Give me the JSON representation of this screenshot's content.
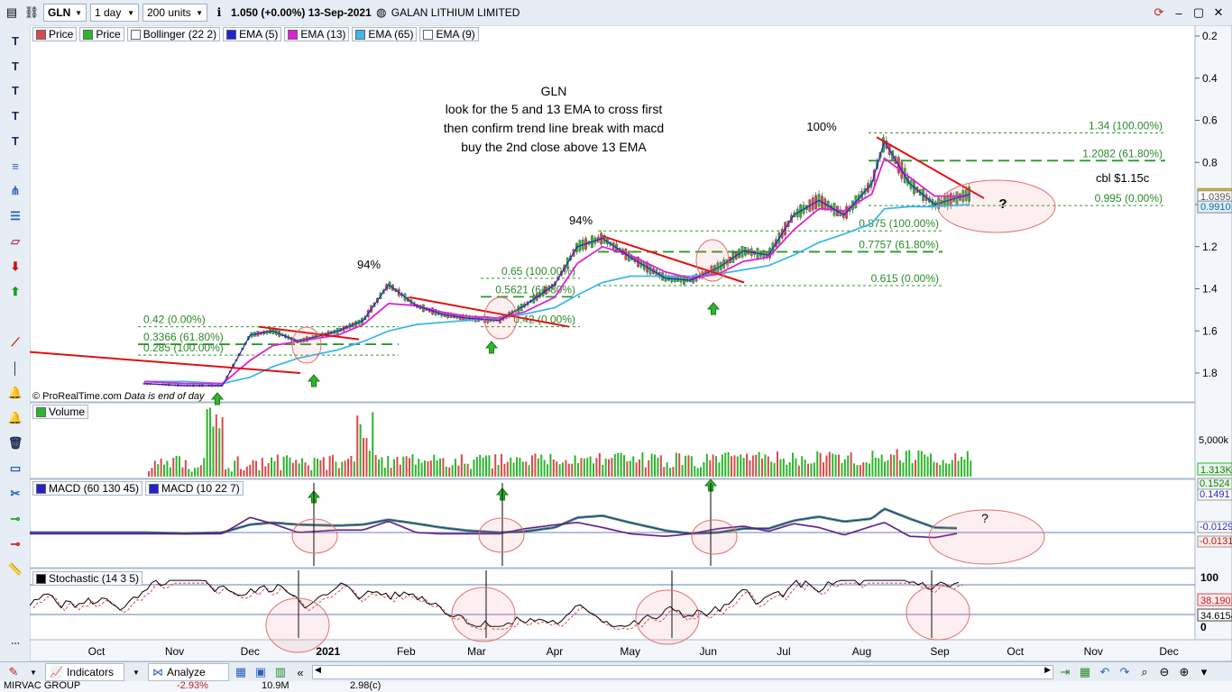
{
  "toolbar": {
    "ticker": "GLN",
    "interval": "1 day",
    "units": "200 units",
    "quote": "1.050 (+0.00%) 13-Sep-2021",
    "company": "GALAN LITHIUM LIMITED"
  },
  "price_legend": [
    "Price",
    "Price",
    "Bollinger (22 2)",
    "EMA (5)",
    "EMA (13)",
    "EMA (65)",
    "EMA (9)"
  ],
  "legend_colors": {
    "price_up": "#2db52d",
    "price_down": "#d94a4a",
    "bollinger": "#ffffff",
    "ema5": "#2222cc",
    "ema13": "#e020d0",
    "ema65": "#3cb8e8",
    "ema9": "#ffffff"
  },
  "volume_label": "Volume",
  "macd_legend": [
    "MACD (60 130 45)",
    "MACD (10 22 7)"
  ],
  "stoch_legend": "Stochastic (14 3 5)",
  "copyright": "© ProRealTime.com",
  "data_note": "Data is end of day",
  "annotation": {
    "title": "GLN",
    "lines": [
      "look for the 5 and 13 EMA to cross first",
      "then confirm trend line break with macd",
      "buy the 2nd close above 13 EMA"
    ]
  },
  "pct_labels": [
    "94%",
    "94%",
    "100%"
  ],
  "question_marks": [
    "?",
    "?"
  ],
  "cbl_note": "cbl $1.15c",
  "fib_labels": {
    "fib1": [
      "0.42 (0.00%)",
      "0.3366 (61.80%)",
      "0.285 (100.00%)"
    ],
    "fib2": [
      "0.65 (100.00%)",
      "0.5621 (61.80%)",
      "0.42 (0.00%)"
    ],
    "fib3": [
      "0.875 (100.00%)",
      "0.7757 (61.80%)",
      "0.615 (0.00%)"
    ],
    "fib4": [
      "1.34 (100.00%)",
      "1.2082 (61.80%)",
      "0.995 (0.00%)"
    ]
  },
  "axis_labels": {
    "price": [
      "1.8",
      "1.6",
      "1.4",
      "1.2",
      "1.0",
      "0.8",
      "0.6",
      "0.4",
      "0.2"
    ],
    "price_badges": [
      "1.050",
      "1.0395",
      "0.9910"
    ],
    "volume": "5,000k",
    "volume_badge": "1.313K",
    "macd_badges": [
      "0.1524",
      "0.1491",
      "-0.0129",
      "-0.0131"
    ],
    "stoch": [
      "100",
      "0"
    ],
    "stoch_badges": [
      "38.1902",
      "34.6154"
    ]
  },
  "months": [
    {
      "label": "Oct",
      "bold": false
    },
    {
      "label": "Nov",
      "bold": false
    },
    {
      "label": "Dec",
      "bold": false
    },
    {
      "label": "2021",
      "bold": true
    },
    {
      "label": "Feb",
      "bold": false
    },
    {
      "label": "Mar",
      "bold": false
    },
    {
      "label": "Apr",
      "bold": false
    },
    {
      "label": "May",
      "bold": false
    },
    {
      "label": "Jun",
      "bold": false
    },
    {
      "label": "Jul",
      "bold": false
    },
    {
      "label": "Aug",
      "bold": false
    },
    {
      "label": "Sep",
      "bold": false
    },
    {
      "label": "Oct",
      "bold": false
    },
    {
      "label": "Nov",
      "bold": false
    },
    {
      "label": "Dec",
      "bold": false
    }
  ],
  "bottom_bar": {
    "indicators": "Indicators",
    "analyze": "Analyze"
  },
  "ticker_strip": {
    "name": "MIRVAC GROUP",
    "change": "-2.93%",
    "volume": "10.9M",
    "price": "2.98(c)"
  },
  "chart_data": {
    "type": "line",
    "title": "GLN",
    "ylim": [
      0.1,
      1.85
    ],
    "y_ticks": [
      0.2,
      0.4,
      0.6,
      0.8,
      1.0,
      1.2,
      1.4,
      1.6,
      1.8
    ],
    "grid": false,
    "x": [
      "2020-10-20",
      "2020-11-05",
      "2020-11-20",
      "2020-12-01",
      "2020-12-10",
      "2020-12-20",
      "2021-01-05",
      "2021-01-15",
      "2021-01-25",
      "2021-02-05",
      "2021-02-15",
      "2021-02-25",
      "2021-03-10",
      "2021-03-20",
      "2021-04-01",
      "2021-04-10",
      "2021-04-20",
      "2021-05-01",
      "2021-05-15",
      "2021-05-25",
      "2021-06-05",
      "2021-06-15",
      "2021-06-25",
      "2021-07-05",
      "2021-07-15",
      "2021-07-25",
      "2021-08-05",
      "2021-08-10",
      "2021-08-20",
      "2021-08-30",
      "2021-09-13"
    ],
    "series": [
      {
        "name": "Price",
        "values": [
          0.15,
          0.14,
          0.14,
          0.38,
          0.4,
          0.35,
          0.4,
          0.45,
          0.62,
          0.52,
          0.48,
          0.46,
          0.45,
          0.52,
          0.62,
          0.8,
          0.84,
          0.75,
          0.65,
          0.64,
          0.7,
          0.78,
          0.76,
          0.95,
          1.02,
          0.95,
          1.1,
          1.3,
          1.1,
          1.0,
          1.05
        ]
      },
      {
        "name": "EMA (13)",
        "values": [
          0.16,
          0.15,
          0.15,
          0.26,
          0.33,
          0.35,
          0.38,
          0.43,
          0.53,
          0.52,
          0.49,
          0.47,
          0.46,
          0.49,
          0.56,
          0.72,
          0.8,
          0.76,
          0.68,
          0.65,
          0.67,
          0.73,
          0.75,
          0.88,
          0.98,
          0.97,
          1.05,
          1.22,
          1.13,
          1.04,
          1.04
        ]
      },
      {
        "name": "EMA (65)",
        "values": [
          0.16,
          0.16,
          0.15,
          0.18,
          0.23,
          0.27,
          0.31,
          0.35,
          0.4,
          0.43,
          0.44,
          0.45,
          0.46,
          0.48,
          0.51,
          0.57,
          0.63,
          0.66,
          0.66,
          0.66,
          0.67,
          0.69,
          0.71,
          0.76,
          0.82,
          0.86,
          0.91,
          0.98,
          0.99,
          0.99,
          1.0
        ]
      }
    ],
    "trend_lines": [
      [
        0.3,
        0.2
      ],
      [
        0.42,
        0.36
      ],
      [
        0.56,
        0.42
      ],
      [
        0.85,
        0.63
      ],
      [
        1.32,
        1.03
      ]
    ],
    "fib_levels": [
      0.42,
      0.3366,
      0.285,
      0.65,
      0.5621,
      0.42,
      0.875,
      0.7757,
      0.615,
      1.34,
      1.2082,
      0.995
    ]
  }
}
